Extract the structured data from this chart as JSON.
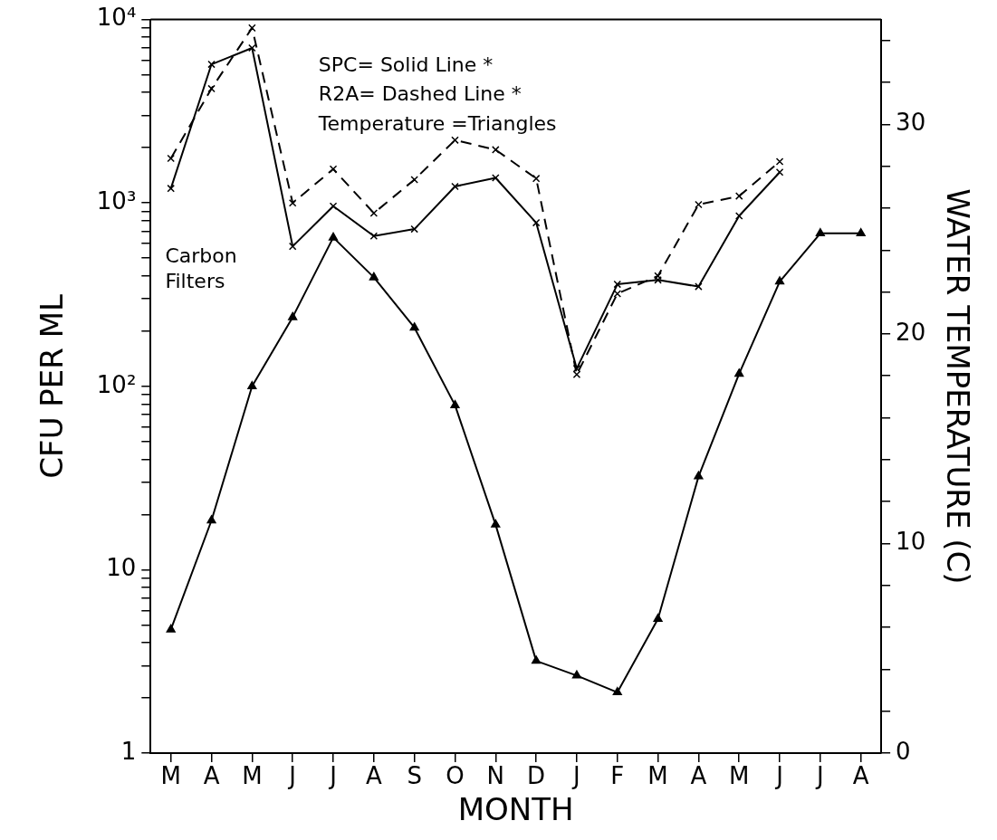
{
  "chart_data": {
    "type": "line",
    "xlabel": "MONTH",
    "ylabel": "CFU PER ML",
    "y2label": "WATER TEMPERATURE (C)",
    "categories": [
      "M",
      "A",
      "M",
      "J",
      "J",
      "A",
      "S",
      "O",
      "N",
      "D",
      "J",
      "F",
      "M",
      "A",
      "M",
      "J",
      "J",
      "A"
    ],
    "series": [
      {
        "color": "#000000",
        "marker": "cross",
        "line_style": "solid",
        "values": [
          1200,
          5700,
          7000,
          580,
          960,
          660,
          720,
          1230,
          1370,
          780,
          125,
          360,
          380,
          350,
          850,
          1470,
          null,
          null
        ]
      },
      {
        "color": "#000000",
        "marker": "cross",
        "line_style": "dashed",
        "values": [
          1750,
          4200,
          9000,
          1000,
          1530,
          880,
          1340,
          2200,
          1950,
          1360,
          116,
          320,
          400,
          980,
          1090,
          1680,
          null,
          null
        ]
      },
      {
        "color": "#000000",
        "marker": "triangle",
        "line_style": "solid",
        "axis": "y2",
        "values": [
          5.9,
          11.1,
          17.5,
          20.8,
          24.6,
          22.7,
          20.3,
          16.6,
          10.9,
          4.4,
          3.7,
          2.9,
          6.4,
          13.2,
          18.1,
          22.5,
          24.8,
          24.8
        ]
      }
    ],
    "log": "y",
    "ylim": [
      1,
      10000
    ],
    "yticks": [
      {
        "value": 1,
        "label": "1"
      },
      {
        "value": 2,
        "label": null
      },
      {
        "value": 3,
        "label": null
      },
      {
        "value": 4,
        "label": null
      },
      {
        "value": 5,
        "label": null
      },
      {
        "value": 6,
        "label": null
      },
      {
        "value": 7,
        "label": null
      },
      {
        "value": 8,
        "label": null
      },
      {
        "value": 9,
        "label": null
      },
      {
        "value": 10,
        "label": "10"
      },
      {
        "value": 20,
        "label": null
      },
      {
        "value": 30,
        "label": null
      },
      {
        "value": 40,
        "label": null
      },
      {
        "value": 50,
        "label": null
      },
      {
        "value": 60,
        "label": null
      },
      {
        "value": 70,
        "label": null
      },
      {
        "value": 80,
        "label": null
      },
      {
        "value": 90,
        "label": null
      },
      {
        "value": 100,
        "label": "10²"
      },
      {
        "value": 200,
        "label": null
      },
      {
        "value": 300,
        "label": null
      },
      {
        "value": 400,
        "label": null
      },
      {
        "value": 500,
        "label": null
      },
      {
        "value": 600,
        "label": null
      },
      {
        "value": 700,
        "label": null
      },
      {
        "value": 800,
        "label": null
      },
      {
        "value": 900,
        "label": null
      },
      {
        "value": 1000,
        "label": "10³"
      },
      {
        "value": 2000,
        "label": null
      },
      {
        "value": 3000,
        "label": null
      },
      {
        "value": 4000,
        "label": null
      },
      {
        "value": 5000,
        "label": null
      },
      {
        "value": 6000,
        "label": null
      },
      {
        "value": 7000,
        "label": null
      },
      {
        "value": 8000,
        "label": null
      },
      {
        "value": 9000,
        "label": null
      },
      {
        "value": 10000,
        "label": "10⁴"
      }
    ],
    "y2lim": [
      0,
      35
    ],
    "y2ticks": [
      0,
      {
        "value": 2,
        "label": null
      },
      {
        "value": 4,
        "label": null
      },
      {
        "value": 6,
        "label": null
      },
      {
        "value": 8,
        "label": null
      },
      10,
      {
        "value": 12,
        "label": null
      },
      {
        "value": 14,
        "label": null
      },
      {
        "value": 16,
        "label": null
      },
      {
        "value": 18,
        "label": null
      },
      20,
      {
        "value": 22,
        "label": null
      },
      {
        "value": 24,
        "label": null
      },
      {
        "value": 26,
        "label": null
      },
      {
        "value": 28,
        "label": null
      },
      30,
      {
        "value": 32,
        "label": null
      },
      {
        "value": 34,
        "label": null
      }
    ],
    "grid": false,
    "legend": false,
    "annotations": [
      "SPC= Solid Line *",
      "R2A= Dashed Line *",
      "Temperature =Triangles",
      "Carbon Filters"
    ]
  }
}
